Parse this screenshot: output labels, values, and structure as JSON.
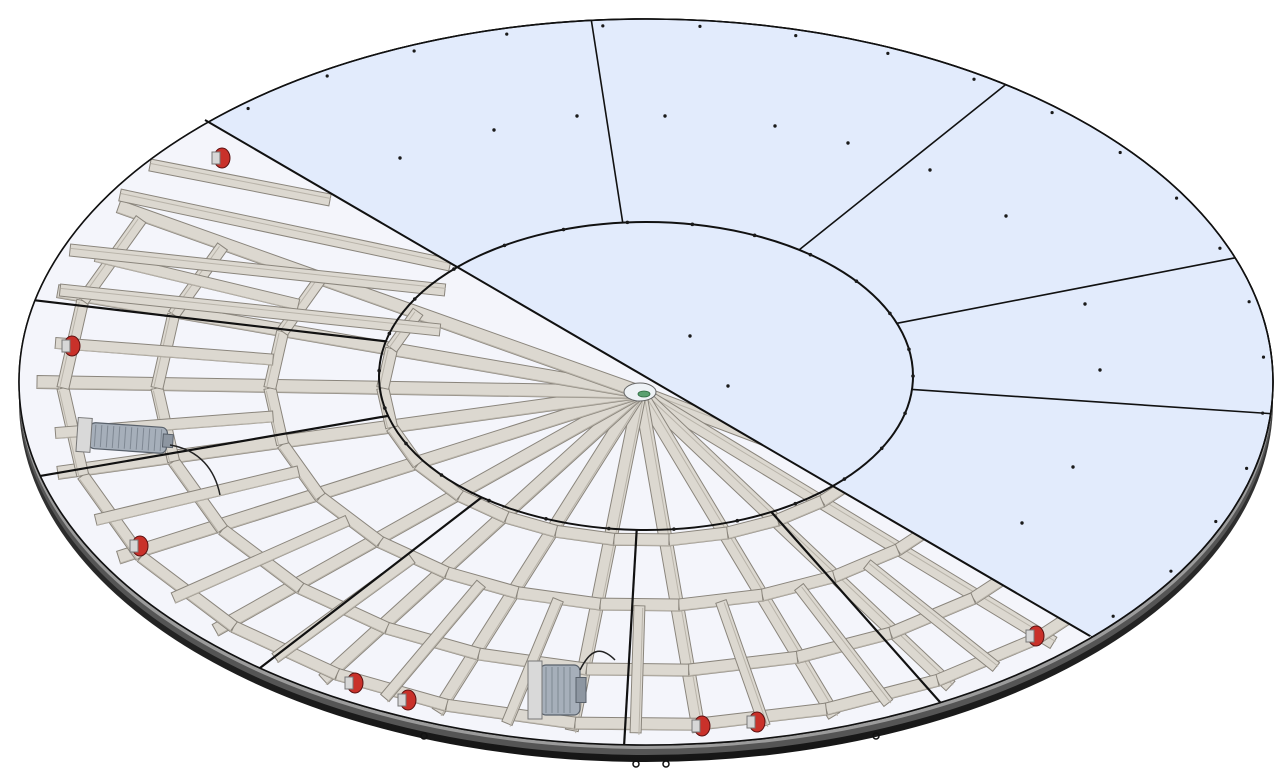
{
  "figure": {
    "subject": "turntable-platform-assembly",
    "render_style": "isometric-cad",
    "colors": {
      "background": "#ffffff",
      "panel_fill": "#e2ebfc",
      "frame_fill": "#dcd8d0",
      "frame_edge": "#8a857c",
      "frame_shadow": "#b9b4aa",
      "open_bay": "#f4f5fb",
      "outline": "#111111",
      "rim_dark": "#202020",
      "rim_light": "#7d7d7d",
      "caster_red": "#c9312a",
      "motor_gray": "#a6afba"
    },
    "parts": [
      {
        "id": "inner-disc-panel",
        "kind": "cover-panel"
      },
      {
        "id": "outer-ring-panel",
        "kind": "cover-panel",
        "count": 5
      },
      {
        "id": "radial-frame",
        "kind": "steel-frame"
      },
      {
        "id": "caster-wheel",
        "kind": "caster"
      },
      {
        "id": "drive-motor",
        "kind": "motor",
        "count": 2
      },
      {
        "id": "outer-rim",
        "kind": "edge-band"
      }
    ]
  }
}
